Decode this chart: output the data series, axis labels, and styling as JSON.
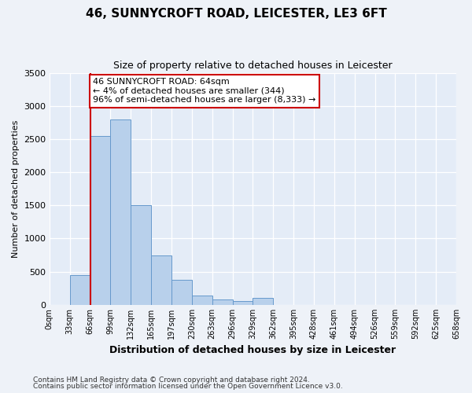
{
  "title": "46, SUNNYCROFT ROAD, LEICESTER, LE3 6FT",
  "subtitle": "Size of property relative to detached houses in Leicester",
  "xlabel": "Distribution of detached houses by size in Leicester",
  "ylabel": "Number of detached properties",
  "bin_labels": [
    "0sqm",
    "33sqm",
    "66sqm",
    "99sqm",
    "132sqm",
    "165sqm",
    "197sqm",
    "230sqm",
    "263sqm",
    "296sqm",
    "329sqm",
    "362sqm",
    "395sqm",
    "428sqm",
    "461sqm",
    "494sqm",
    "526sqm",
    "559sqm",
    "592sqm",
    "625sqm",
    "658sqm"
  ],
  "bar_values": [
    0,
    450,
    2550,
    2800,
    1500,
    750,
    380,
    140,
    80,
    60,
    100,
    0,
    0,
    0,
    0,
    0,
    0,
    0,
    0,
    0
  ],
  "bar_color": "#b8d0eb",
  "bar_edge_color": "#6699cc",
  "vline_x": 2,
  "vline_color": "#cc0000",
  "annotation_text": "46 SUNNYCROFT ROAD: 64sqm\n← 4% of detached houses are smaller (344)\n96% of semi-detached houses are larger (8,333) →",
  "annotation_box_color": "white",
  "annotation_box_edge": "#cc0000",
  "ylim": [
    0,
    3500
  ],
  "yticks": [
    0,
    500,
    1000,
    1500,
    2000,
    2500,
    3000,
    3500
  ],
  "footnote1": "Contains HM Land Registry data © Crown copyright and database right 2024.",
  "footnote2": "Contains public sector information licensed under the Open Government Licence v3.0.",
  "bg_color": "#eef2f8",
  "plot_bg_color": "#e4ecf7"
}
